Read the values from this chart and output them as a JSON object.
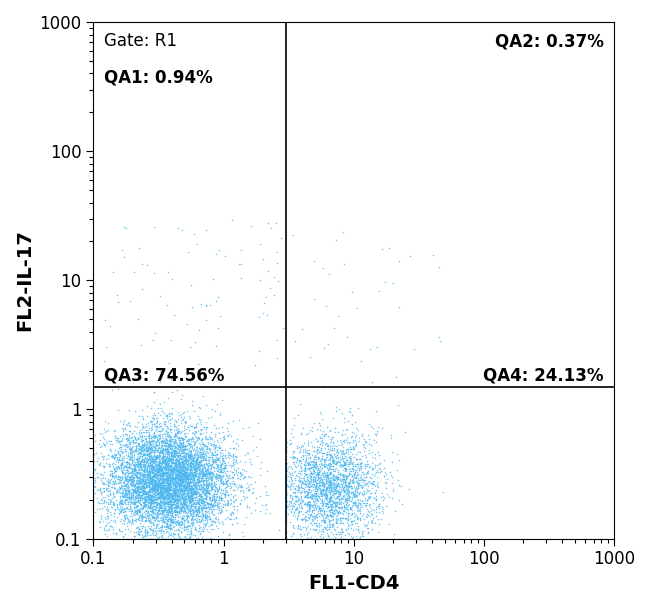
{
  "xlabel": "FL1-CD4",
  "ylabel": "FL2-IL-17",
  "xlim": [
    0.1,
    1000
  ],
  "ylim": [
    0.1,
    1000
  ],
  "gate_x": 3.0,
  "gate_y": 1.5,
  "gate_label": "Gate: R1",
  "label_qa1": "QA1: 0.94%",
  "label_qa2": "QA2: 0.37%",
  "label_qa3": "QA3: 74.56%",
  "label_qa4": "QA4: 24.13%",
  "dot_color": "#4db8f0",
  "background_color": "#ffffff",
  "n_dots_q3": 7456,
  "n_dots_q4": 2413,
  "n_dots_q1": 94,
  "n_dots_q2": 37,
  "xlabel_fontsize": 14,
  "ylabel_fontsize": 14,
  "label_fontsize": 12,
  "gate_label_fontsize": 12,
  "dot_size": 1.2,
  "dot_alpha": 0.8,
  "tick_labelsize": 12
}
